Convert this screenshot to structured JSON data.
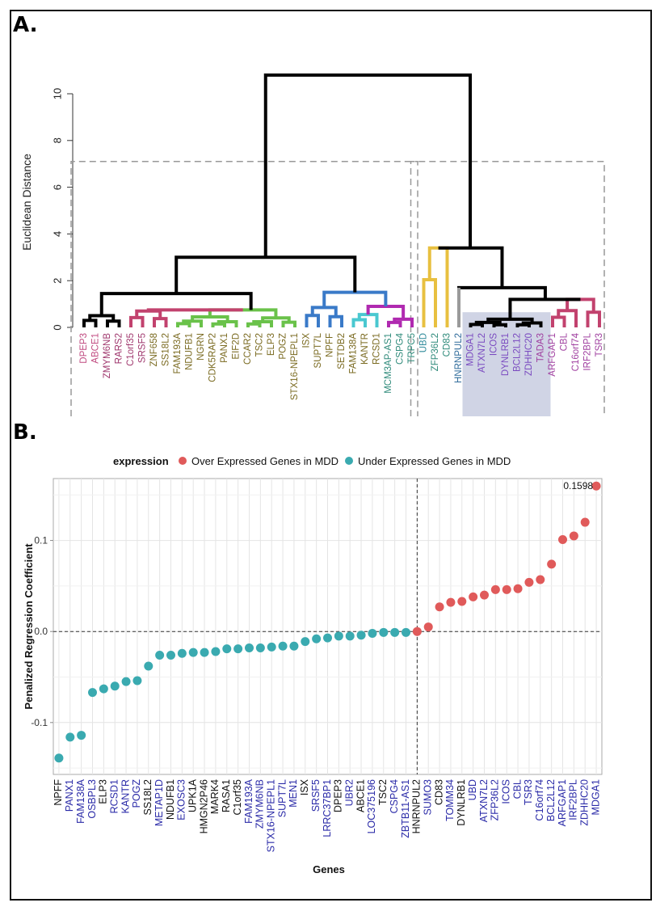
{
  "panels": {
    "a_label": "A.",
    "b_label": "B."
  },
  "chart_data": [
    {
      "type": "dendrogram",
      "panel": "A",
      "ylabel": "Euclidean Distance",
      "ylim": [
        0,
        10
      ],
      "yticks": [
        "0",
        "2",
        "4",
        "6",
        "8",
        "10"
      ],
      "leaves": [
        {
          "name": "DPEP3",
          "color": "#c04a80"
        },
        {
          "name": "ABCE1",
          "color": "#c04a80"
        },
        {
          "name": "ZMYM6NB",
          "color": "#a0386e"
        },
        {
          "name": "RARS2",
          "color": "#a0386e"
        },
        {
          "name": "C1orf35",
          "color": "#a0386e"
        },
        {
          "name": "SRSF5",
          "color": "#a0386e"
        },
        {
          "name": "ZNF658",
          "color": "#7a6a20"
        },
        {
          "name": "SS18L2",
          "color": "#7a6a20"
        },
        {
          "name": "FAM193A",
          "color": "#7a6a20"
        },
        {
          "name": "NDUFB1",
          "color": "#7a6a20"
        },
        {
          "name": "NGRN",
          "color": "#7a6a20"
        },
        {
          "name": "CDK5RAP2",
          "color": "#7a6a20"
        },
        {
          "name": "PANX1",
          "color": "#7a6a20"
        },
        {
          "name": "EIF2D",
          "color": "#7a6a20"
        },
        {
          "name": "CCAR2",
          "color": "#7a6a20"
        },
        {
          "name": "TSC2",
          "color": "#7a6a20"
        },
        {
          "name": "ELP3",
          "color": "#7a6a20"
        },
        {
          "name": "POGZ",
          "color": "#7a6a20"
        },
        {
          "name": "STX16-NPEPL1",
          "color": "#7a6a20"
        },
        {
          "name": "ISX",
          "color": "#7a6a20"
        },
        {
          "name": "SUPT7L",
          "color": "#7a6a20"
        },
        {
          "name": "NPFF",
          "color": "#7a6a20"
        },
        {
          "name": "SETDB2",
          "color": "#7a6a20"
        },
        {
          "name": "FAM138A",
          "color": "#7a6a20"
        },
        {
          "name": "KANTR",
          "color": "#7a6a20"
        },
        {
          "name": "RCSD1",
          "color": "#7a6a20"
        },
        {
          "name": "MCM3AP-AS1",
          "color": "#2e8a7a"
        },
        {
          "name": "CSPG4",
          "color": "#2e8a7a"
        },
        {
          "name": "TRPC5",
          "color": "#2e8a7a"
        },
        {
          "name": "UBD",
          "color": "#2e8a9a"
        },
        {
          "name": "ZFP36L2",
          "color": "#2e8a7a"
        },
        {
          "name": "CD83",
          "color": "#2e8a7a"
        },
        {
          "name": "HNRNPUL2",
          "color": "#2e6a9a"
        },
        {
          "name": "MDGA1",
          "color": "#7a4ac0"
        },
        {
          "name": "ATXN7L2",
          "color": "#7a4ac0"
        },
        {
          "name": "ICOS",
          "color": "#7a4ac0"
        },
        {
          "name": "DYNLRB1",
          "color": "#7a4ac0"
        },
        {
          "name": "BCL2L12",
          "color": "#7a4ac0"
        },
        {
          "name": "ZDHHC20",
          "color": "#7a4ac0"
        },
        {
          "name": "TADA3",
          "color": "#a040a0"
        },
        {
          "name": "ARFGAP1",
          "color": "#a040a0"
        },
        {
          "name": "CBL",
          "color": "#a040a0"
        },
        {
          "name": "C16orf74",
          "color": "#a040a0"
        },
        {
          "name": "IRF2BPL",
          "color": "#a040a0"
        },
        {
          "name": "TSR3",
          "color": "#a040a0"
        }
      ],
      "clusters": [
        {
          "name": "black-1",
          "color": "#000000",
          "leaves": [
            0,
            3
          ],
          "height": 0.5
        },
        {
          "name": "pink-1",
          "color": "#c2426e",
          "leaves": [
            4,
            7
          ],
          "height": 0.7
        },
        {
          "name": "green",
          "color": "#6ac24a",
          "leaves": [
            8,
            18
          ],
          "height": 0.75
        },
        {
          "name": "blue",
          "color": "#3a7ac8",
          "leaves": [
            19,
            22
          ],
          "height": 0.85
        },
        {
          "name": "cyan",
          "color": "#4ac8d0",
          "leaves": [
            23,
            25
          ],
          "height": 0.55
        },
        {
          "name": "magenta",
          "color": "#b02ab0",
          "leaves": [
            26,
            28
          ],
          "height": 0.35
        },
        {
          "name": "yellow",
          "color": "#e8c040",
          "leaves": [
            29,
            31
          ],
          "height": 3.4
        },
        {
          "name": "gray",
          "color": "#9a9a9a",
          "leaves": [
            32,
            32
          ],
          "height": 2.1
        },
        {
          "name": "black-2",
          "color": "#000000",
          "leaves": [
            33,
            39
          ],
          "height": 0.35
        },
        {
          "name": "pink-2",
          "color": "#c2426e",
          "leaves": [
            40,
            44
          ],
          "height": 1.2
        }
      ],
      "merges": {
        "root": 10.8,
        "left_main": 3.0,
        "left_a": 1.45,
        "left_b": 1.5,
        "left_b_sub": 0.9,
        "right_main": 3.4,
        "right_b": 2.1,
        "right_c": 1.7,
        "right_d": 1.2
      },
      "highlight_box_leaves": [
        33,
        39
      ],
      "dashed_boxes": [
        [
          0,
          28
        ],
        [
          29,
          44
        ]
      ],
      "dashed_box_height": 7.1
    },
    {
      "type": "scatter",
      "panel": "B",
      "title": "",
      "xlabel": "Genes",
      "ylabel": "Penalized Regression Coefficient",
      "ylim": [
        -0.157,
        0.168
      ],
      "yticks": [
        {
          "value": -0.1,
          "label": "-0.1"
        },
        {
          "value": 0.0,
          "label": "0.0"
        },
        {
          "value": 0.1,
          "label": "0.1"
        }
      ],
      "grid": true,
      "legend": {
        "title": "expression",
        "position": "top",
        "entries": [
          {
            "label": "Over Expressed Genes in MDD",
            "color": "#e05a5a"
          },
          {
            "label": "Under Expressed Genes in MDD",
            "color": "#3aaab0"
          }
        ]
      },
      "annotation": {
        "text": "0.1598",
        "gene": "MDGA1"
      },
      "reference_lines": {
        "y": 0.0,
        "x_gene": "HNRNPUL2"
      },
      "tick_label_colors": {
        "black": "#111111",
        "blue": "#2b2ba8"
      },
      "points": [
        {
          "gene": "NPFF",
          "value": -0.139,
          "group": "under",
          "label_color": "black"
        },
        {
          "gene": "PANX1",
          "value": -0.116,
          "group": "under",
          "label_color": "blue"
        },
        {
          "gene": "FAM138A",
          "value": -0.114,
          "group": "under",
          "label_color": "blue"
        },
        {
          "gene": "OSBPL3",
          "value": -0.067,
          "group": "under",
          "label_color": "blue"
        },
        {
          "gene": "ELP3",
          "value": -0.063,
          "group": "under",
          "label_color": "black"
        },
        {
          "gene": "RCSD1",
          "value": -0.06,
          "group": "under",
          "label_color": "blue"
        },
        {
          "gene": "KANTR",
          "value": -0.055,
          "group": "under",
          "label_color": "blue"
        },
        {
          "gene": "POGZ",
          "value": -0.054,
          "group": "under",
          "label_color": "blue"
        },
        {
          "gene": "SS18L2",
          "value": -0.038,
          "group": "under",
          "label_color": "black"
        },
        {
          "gene": "METAP1D",
          "value": -0.026,
          "group": "under",
          "label_color": "blue"
        },
        {
          "gene": "NDUFB1",
          "value": -0.026,
          "group": "under",
          "label_color": "black"
        },
        {
          "gene": "EXOSC3",
          "value": -0.024,
          "group": "under",
          "label_color": "blue"
        },
        {
          "gene": "UPK1A",
          "value": -0.023,
          "group": "under",
          "label_color": "black"
        },
        {
          "gene": "HMGN2P46",
          "value": -0.023,
          "group": "under",
          "label_color": "black"
        },
        {
          "gene": "MARK4",
          "value": -0.022,
          "group": "under",
          "label_color": "black"
        },
        {
          "gene": "RASA1",
          "value": -0.019,
          "group": "under",
          "label_color": "black"
        },
        {
          "gene": "C1orf35",
          "value": -0.019,
          "group": "under",
          "label_color": "black"
        },
        {
          "gene": "FAM193A",
          "value": -0.018,
          "group": "under",
          "label_color": "blue"
        },
        {
          "gene": "ZMYM6NB",
          "value": -0.018,
          "group": "under",
          "label_color": "blue"
        },
        {
          "gene": "STX16-NPEPL1",
          "value": -0.017,
          "group": "under",
          "label_color": "blue"
        },
        {
          "gene": "SUPT7L",
          "value": -0.016,
          "group": "under",
          "label_color": "blue"
        },
        {
          "gene": "MEN1",
          "value": -0.016,
          "group": "under",
          "label_color": "blue"
        },
        {
          "gene": "ISX",
          "value": -0.011,
          "group": "under",
          "label_color": "black"
        },
        {
          "gene": "SRSF5",
          "value": -0.008,
          "group": "under",
          "label_color": "blue"
        },
        {
          "gene": "LRRC37BP1",
          "value": -0.007,
          "group": "under",
          "label_color": "blue"
        },
        {
          "gene": "DPEP3",
          "value": -0.005,
          "group": "under",
          "label_color": "black"
        },
        {
          "gene": "UBR2",
          "value": -0.005,
          "group": "under",
          "label_color": "blue"
        },
        {
          "gene": "ABCE1",
          "value": -0.004,
          "group": "under",
          "label_color": "black"
        },
        {
          "gene": "LOC375196",
          "value": -0.002,
          "group": "under",
          "label_color": "blue"
        },
        {
          "gene": "TSC2",
          "value": -0.001,
          "group": "under",
          "label_color": "black"
        },
        {
          "gene": "CSPG4",
          "value": -0.001,
          "group": "under",
          "label_color": "blue"
        },
        {
          "gene": "ZBTB11-AS1",
          "value": -0.001,
          "group": "under",
          "label_color": "blue"
        },
        {
          "gene": "HNRNPUL2",
          "value": 0.0,
          "group": "over",
          "label_color": "black"
        },
        {
          "gene": "SUMO3",
          "value": 0.005,
          "group": "over",
          "label_color": "blue"
        },
        {
          "gene": "CD83",
          "value": 0.027,
          "group": "over",
          "label_color": "black"
        },
        {
          "gene": "TOMM34",
          "value": 0.032,
          "group": "over",
          "label_color": "blue"
        },
        {
          "gene": "DYNLRB1",
          "value": 0.033,
          "group": "over",
          "label_color": "black"
        },
        {
          "gene": "UBD",
          "value": 0.038,
          "group": "over",
          "label_color": "blue"
        },
        {
          "gene": "ATXN7L2",
          "value": 0.04,
          "group": "over",
          "label_color": "blue"
        },
        {
          "gene": "ZFP36L2",
          "value": 0.046,
          "group": "over",
          "label_color": "blue"
        },
        {
          "gene": "ICOS",
          "value": 0.046,
          "group": "over",
          "label_color": "blue"
        },
        {
          "gene": "CBL",
          "value": 0.047,
          "group": "over",
          "label_color": "blue"
        },
        {
          "gene": "TSR3",
          "value": 0.054,
          "group": "over",
          "label_color": "blue"
        },
        {
          "gene": "C16orf74",
          "value": 0.057,
          "group": "over",
          "label_color": "blue"
        },
        {
          "gene": "BCL2L12",
          "value": 0.074,
          "group": "over",
          "label_color": "blue"
        },
        {
          "gene": "ARFGAP1",
          "value": 0.101,
          "group": "over",
          "label_color": "blue"
        },
        {
          "gene": "IRF2BPL",
          "value": 0.105,
          "group": "over",
          "label_color": "blue"
        },
        {
          "gene": "ZDHHC20",
          "value": 0.12,
          "group": "over",
          "label_color": "blue"
        },
        {
          "gene": "MDGA1",
          "value": 0.1598,
          "group": "over",
          "label_color": "blue"
        }
      ]
    }
  ]
}
